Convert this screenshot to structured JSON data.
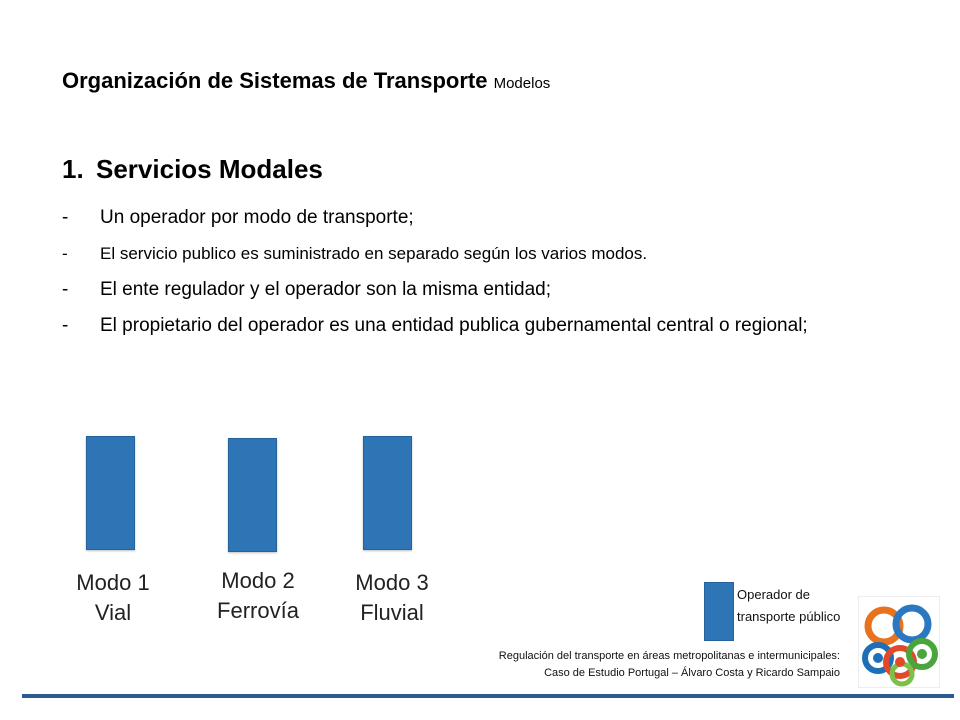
{
  "title": {
    "main": "Organización de Sistemas de Transporte",
    "sub": "Modelos"
  },
  "section": {
    "number": "1.",
    "heading": "Servicios Modales"
  },
  "bullets": [
    {
      "dash": "-",
      "text": "Un operador por modo de transporte;"
    },
    {
      "dash": "-",
      "text": "El servicio publico es suministrado en separado según los varios modos."
    },
    {
      "dash": "-",
      "text": "El ente regulador y el operador son la misma entidad;"
    },
    {
      "dash": "-",
      "text": "El propietario del operador es una entidad publica gubernamental central o regional;"
    }
  ],
  "modes": [
    {
      "line1": "Modo 1",
      "line2": "Vial"
    },
    {
      "line1": "Modo 2",
      "line2": "Ferrovía"
    },
    {
      "line1": "Modo 3",
      "line2": "Fluvial"
    }
  ],
  "legend": {
    "line1": "Operador de",
    "line2": "transporte público"
  },
  "footer": {
    "line1": "Regulación del transporte en áreas metropolitanas e intermunicipales:",
    "line2": "Caso de Estudio Portugal – Álvaro Costa y Ricardo Sampaio"
  },
  "colors": {
    "bar": "#2e75b6",
    "rule": "#2e5b8f"
  }
}
